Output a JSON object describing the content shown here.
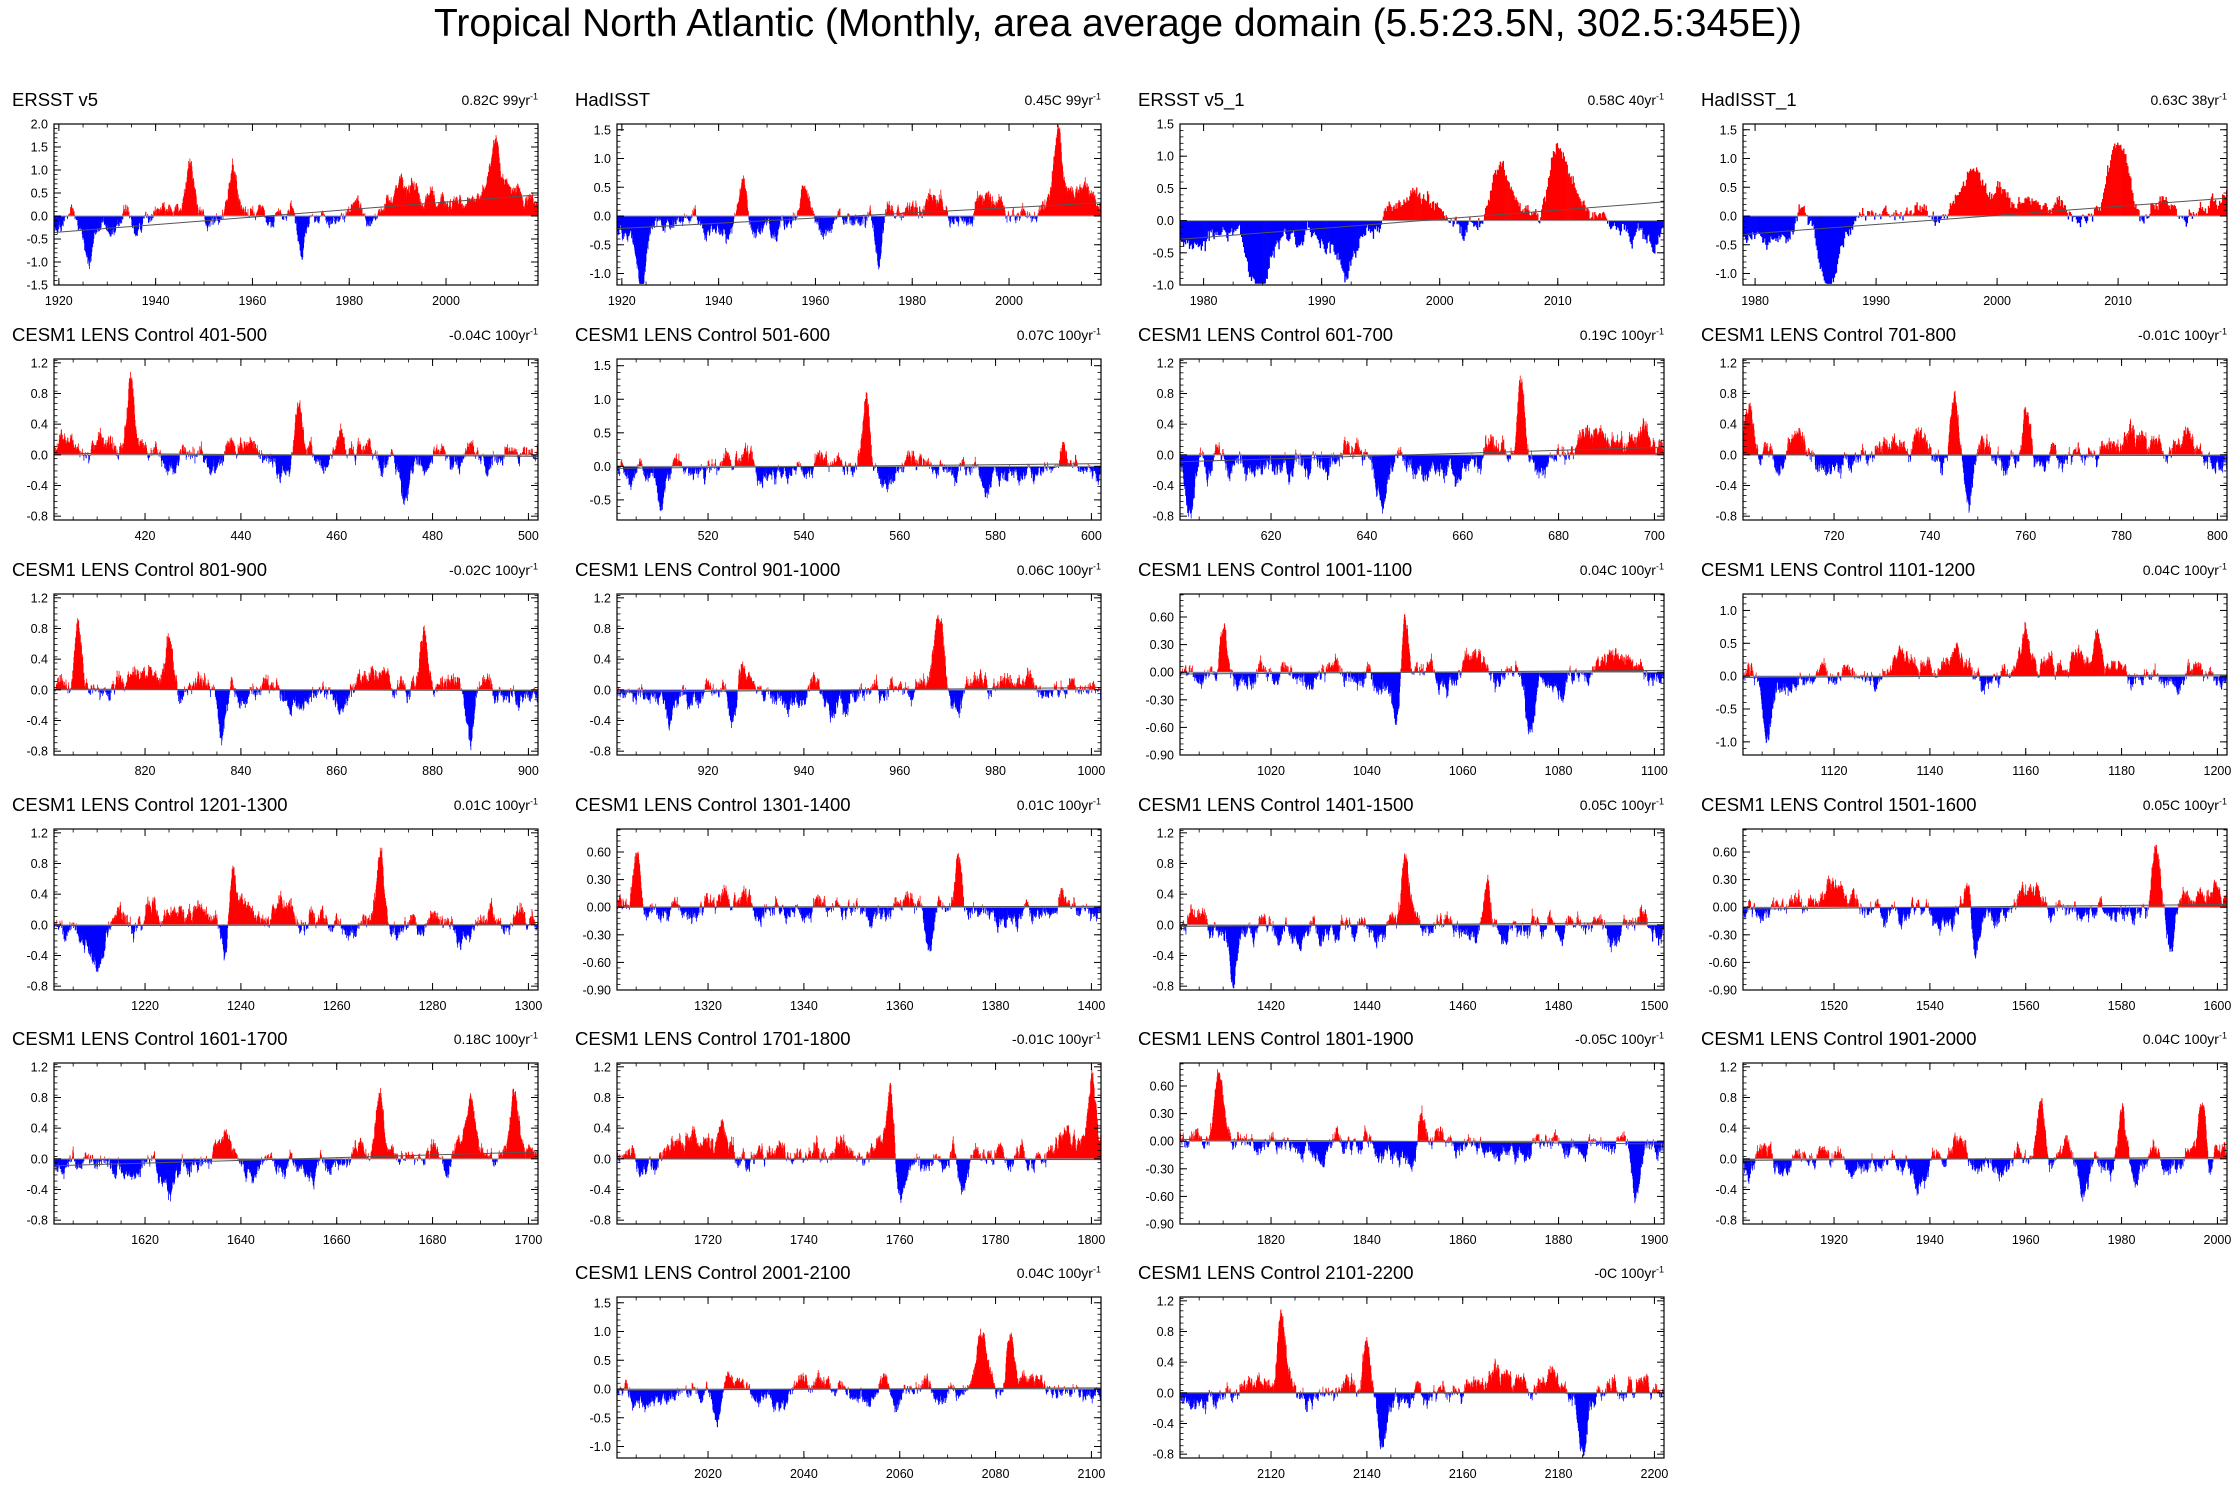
{
  "title": "Tropical North Atlantic (Monthly, area average domain (5.5:23.5N, 302.5:345E))",
  "colors": {
    "positive": "#ff0000",
    "negative": "#0000ff",
    "axis": "#000000",
    "zero_line": "#9a9a9a",
    "trend_line": "#555555"
  },
  "chart_data": [
    {
      "type": "bar",
      "title": "ERSST v5",
      "trend_value": "0.82C 99yr",
      "trend_unit_sup": "-1",
      "x_range": [
        1919,
        2019
      ],
      "x_ticks": [
        "1920",
        "1940",
        "1960",
        "1980",
        "2000"
      ],
      "ylim": [
        -1.5,
        2.0
      ],
      "y_ticks": [
        "2.0",
        "1.5",
        "1.0",
        "0.5",
        "0.0",
        "-0.5",
        "-1.0",
        "-1.5"
      ],
      "trend_line": [
        [
          1919,
          -0.36
        ],
        [
          2019,
          0.46
        ]
      ],
      "amplitude": 0.38,
      "seed": 1,
      "peaks": [
        [
          1926,
          -1.05
        ],
        [
          1947,
          1.38
        ],
        [
          1970,
          -1.25
        ],
        [
          2010,
          1.6
        ],
        [
          1956,
          0.9
        ],
        [
          1934,
          0.6
        ]
      ]
    },
    {
      "type": "bar",
      "title": "HadISST",
      "trend_value": "0.45C 99yr",
      "trend_unit_sup": "-1",
      "x_range": [
        1919,
        2019
      ],
      "x_ticks": [
        "1920",
        "1940",
        "1960",
        "1980",
        "2000"
      ],
      "ylim": [
        -1.2,
        1.6
      ],
      "y_ticks": [
        "1.5",
        "1.0",
        "0.5",
        "0.0",
        "-0.5",
        "-1.0"
      ],
      "trend_line": [
        [
          1919,
          -0.22
        ],
        [
          2019,
          0.23
        ]
      ],
      "amplitude": 0.32,
      "seed": 2,
      "peaks": [
        [
          1924,
          -1.0
        ],
        [
          1945,
          0.95
        ],
        [
          1973,
          -0.95
        ],
        [
          2010,
          1.45
        ],
        [
          1958,
          0.8
        ]
      ]
    },
    {
      "type": "bar",
      "title": "ERSST v5_1",
      "trend_value": "0.58C 40yr",
      "trend_unit_sup": "-1",
      "x_range": [
        1978,
        2019
      ],
      "x_ticks": [
        "1980",
        "1990",
        "2000",
        "2010"
      ],
      "ylim": [
        -1.0,
        1.5
      ],
      "y_ticks": [
        "1.5",
        "1.0",
        "0.5",
        "0.0",
        "-0.5",
        "-1.0"
      ],
      "trend_line": [
        [
          1978,
          -0.29
        ],
        [
          2019,
          0.29
        ]
      ],
      "amplitude": 0.35,
      "seed": 3,
      "peaks": [
        [
          1985,
          -0.85
        ],
        [
          1992,
          -0.7
        ],
        [
          2005,
          0.95
        ],
        [
          2010,
          1.4
        ],
        [
          2018,
          -0.75
        ]
      ]
    },
    {
      "type": "bar",
      "title": "HadISST_1",
      "trend_value": "0.63C 38yr",
      "trend_unit_sup": "-1",
      "x_range": [
        1979,
        2019
      ],
      "x_ticks": [
        "1980",
        "1990",
        "2000",
        "2010"
      ],
      "ylim": [
        -1.2,
        1.6
      ],
      "y_ticks": [
        "1.5",
        "1.0",
        "0.5",
        "0.0",
        "-0.5",
        "-1.0"
      ],
      "trend_line": [
        [
          1979,
          -0.32
        ],
        [
          2019,
          0.31
        ]
      ],
      "amplitude": 0.36,
      "seed": 4,
      "peaks": [
        [
          1986,
          -1.0
        ],
        [
          1998,
          0.75
        ],
        [
          2010,
          1.4
        ],
        [
          1984,
          0.7
        ]
      ]
    },
    {
      "type": "bar",
      "title": "CESM1 LENS Control 401-500",
      "trend_value": "-0.04C 100yr",
      "trend_unit_sup": "-1",
      "x_range": [
        401,
        502
      ],
      "x_ticks": [
        "420",
        "440",
        "460",
        "480",
        "500"
      ],
      "ylim": [
        -0.85,
        1.25
      ],
      "y_ticks": [
        "1.2",
        "0.8",
        "0.4",
        "0.0",
        "-0.4",
        "-0.8"
      ],
      "trend_line": [
        [
          401,
          0.02
        ],
        [
          502,
          -0.02
        ]
      ],
      "amplitude": 0.28,
      "seed": 5,
      "peaks": [
        [
          417,
          0.95
        ],
        [
          452,
          0.85
        ],
        [
          474,
          -0.55
        ]
      ]
    },
    {
      "type": "bar",
      "title": "CESM1 LENS Control 501-600",
      "trend_value": "0.07C 100yr",
      "trend_unit_sup": "-1",
      "x_range": [
        501,
        602
      ],
      "x_ticks": [
        "520",
        "540",
        "560",
        "580",
        "600"
      ],
      "ylim": [
        -0.8,
        1.6
      ],
      "y_ticks": [
        "1.5",
        "1.0",
        "0.5",
        "0.0",
        "-0.5"
      ],
      "trend_line": [
        [
          501,
          -0.03
        ],
        [
          602,
          0.04
        ]
      ],
      "amplitude": 0.3,
      "seed": 6,
      "peaks": [
        [
          553,
          1.25
        ],
        [
          510,
          -0.6
        ],
        [
          578,
          -0.55
        ]
      ]
    },
    {
      "type": "bar",
      "title": "CESM1 LENS Control 601-700",
      "trend_value": "0.19C 100yr",
      "trend_unit_sup": "-1",
      "x_range": [
        601,
        702
      ],
      "x_ticks": [
        "620",
        "640",
        "660",
        "680",
        "700"
      ],
      "ylim": [
        -0.85,
        1.25
      ],
      "y_ticks": [
        "1.2",
        "0.8",
        "0.4",
        "0.0",
        "-0.4",
        "-0.8"
      ],
      "trend_line": [
        [
          601,
          -0.09
        ],
        [
          702,
          0.1
        ]
      ],
      "amplitude": 0.3,
      "seed": 7,
      "peaks": [
        [
          672,
          1.1
        ],
        [
          603,
          -0.75
        ],
        [
          643,
          -0.55
        ]
      ]
    },
    {
      "type": "bar",
      "title": "CESM1 LENS Control 701-800",
      "trend_value": "-0.01C 100yr",
      "trend_unit_sup": "-1",
      "x_range": [
        701,
        802
      ],
      "x_ticks": [
        "720",
        "740",
        "760",
        "780",
        "800"
      ],
      "ylim": [
        -0.85,
        1.25
      ],
      "y_ticks": [
        "1.2",
        "0.8",
        "0.4",
        "0.0",
        "-0.4",
        "-0.8"
      ],
      "trend_line": [
        [
          701,
          0.0
        ],
        [
          802,
          -0.01
        ]
      ],
      "amplitude": 0.3,
      "seed": 8,
      "peaks": [
        [
          702,
          0.8
        ],
        [
          745,
          0.95
        ],
        [
          760,
          0.9
        ],
        [
          748,
          -0.75
        ]
      ]
    },
    {
      "type": "bar",
      "title": "CESM1 LENS Control 801-900",
      "trend_value": "-0.02C 100yr",
      "trend_unit_sup": "-1",
      "x_range": [
        801,
        902
      ],
      "x_ticks": [
        "820",
        "840",
        "860",
        "880",
        "900"
      ],
      "ylim": [
        -0.85,
        1.25
      ],
      "y_ticks": [
        "1.2",
        "0.8",
        "0.4",
        "0.0",
        "-0.4",
        "-0.8"
      ],
      "trend_line": [
        [
          801,
          0.01
        ],
        [
          902,
          -0.01
        ]
      ],
      "amplitude": 0.28,
      "seed": 9,
      "peaks": [
        [
          806,
          0.9
        ],
        [
          825,
          0.8
        ],
        [
          878,
          0.85
        ],
        [
          836,
          -0.75
        ],
        [
          888,
          -0.7
        ]
      ]
    },
    {
      "type": "bar",
      "title": "CESM1 LENS Control 901-1000",
      "trend_value": "0.06C 100yr",
      "trend_unit_sup": "-1",
      "x_range": [
        901,
        1002
      ],
      "x_ticks": [
        "920",
        "940",
        "960",
        "980",
        "1000"
      ],
      "ylim": [
        -0.85,
        1.25
      ],
      "y_ticks": [
        "1.2",
        "0.8",
        "0.4",
        "0.0",
        "-0.4",
        "-0.8"
      ],
      "trend_line": [
        [
          901,
          -0.03
        ],
        [
          1002,
          0.03
        ]
      ],
      "amplitude": 0.28,
      "seed": 10,
      "peaks": [
        [
          968,
          1.05
        ],
        [
          925,
          -0.7
        ],
        [
          912,
          -0.6
        ]
      ]
    },
    {
      "type": "bar",
      "title": "CESM1 LENS Control 1001-1100",
      "trend_value": "0.04C 100yr",
      "trend_unit_sup": "-1",
      "x_range": [
        1001,
        1102
      ],
      "x_ticks": [
        "1020",
        "1040",
        "1060",
        "1080",
        "1100"
      ],
      "ylim": [
        -0.9,
        0.85
      ],
      "y_ticks": [
        "0.60",
        "0.30",
        "0.00",
        "-0.30",
        "-0.60",
        "-0.90"
      ],
      "trend_line": [
        [
          1001,
          -0.02
        ],
        [
          1102,
          0.02
        ]
      ],
      "amplitude": 0.22,
      "seed": 11,
      "peaks": [
        [
          1048,
          0.8
        ],
        [
          1010,
          0.75
        ],
        [
          1046,
          -0.75
        ],
        [
          1074,
          -0.65
        ]
      ]
    },
    {
      "type": "bar",
      "title": "CESM1 LENS Control 1101-1200",
      "trend_value": "0.04C 100yr",
      "trend_unit_sup": "-1",
      "x_range": [
        1101,
        1202
      ],
      "x_ticks": [
        "1120",
        "1140",
        "1160",
        "1180",
        "1200"
      ],
      "ylim": [
        -1.2,
        1.25
      ],
      "y_ticks": [
        "1.0",
        "0.5",
        "0.0",
        "-0.5",
        "-1.0"
      ],
      "trend_line": [
        [
          1101,
          -0.02
        ],
        [
          1202,
          0.02
        ]
      ],
      "amplitude": 0.3,
      "seed": 12,
      "peaks": [
        [
          1106,
          -1.1
        ],
        [
          1160,
          0.9
        ],
        [
          1175,
          0.85
        ]
      ]
    },
    {
      "type": "bar",
      "title": "CESM1 LENS Control 1201-1300",
      "trend_value": "0.01C 100yr",
      "trend_unit_sup": "-1",
      "x_range": [
        1201,
        1302
      ],
      "x_ticks": [
        "1220",
        "1240",
        "1260",
        "1280",
        "1300"
      ],
      "ylim": [
        -0.85,
        1.25
      ],
      "y_ticks": [
        "1.2",
        "0.8",
        "0.4",
        "0.0",
        "-0.4",
        "-0.8"
      ],
      "trend_line": [
        [
          1201,
          -0.01
        ],
        [
          1302,
          0.0
        ]
      ],
      "amplitude": 0.28,
      "seed": 13,
      "peaks": [
        [
          1238,
          1.05
        ],
        [
          1269,
          0.95
        ],
        [
          1237,
          -0.75
        ],
        [
          1210,
          -0.6
        ]
      ]
    },
    {
      "type": "bar",
      "title": "CESM1 LENS Control 1301-1400",
      "trend_value": "0.01C 100yr",
      "trend_unit_sup": "-1",
      "x_range": [
        1301,
        1402
      ],
      "x_ticks": [
        "1320",
        "1340",
        "1360",
        "1380",
        "1400"
      ],
      "ylim": [
        -0.9,
        0.85
      ],
      "y_ticks": [
        "0.60",
        "0.30",
        "0.00",
        "-0.30",
        "-0.60",
        "-0.90"
      ],
      "trend_line": [
        [
          1301,
          0.0
        ],
        [
          1402,
          0.01
        ]
      ],
      "amplitude": 0.22,
      "seed": 14,
      "peaks": [
        [
          1372,
          0.7
        ],
        [
          1305,
          0.6
        ],
        [
          1366,
          -0.65
        ]
      ]
    },
    {
      "type": "bar",
      "title": "CESM1 LENS Control 1401-1500",
      "trend_value": "0.05C 100yr",
      "trend_unit_sup": "-1",
      "x_range": [
        1401,
        1502
      ],
      "x_ticks": [
        "1420",
        "1440",
        "1460",
        "1480",
        "1500"
      ],
      "ylim": [
        -0.85,
        1.25
      ],
      "y_ticks": [
        "1.2",
        "0.8",
        "0.4",
        "0.0",
        "-0.4",
        "-0.8"
      ],
      "trend_line": [
        [
          1401,
          -0.02
        ],
        [
          1502,
          0.03
        ]
      ],
      "amplitude": 0.28,
      "seed": 15,
      "peaks": [
        [
          1448,
          1.0
        ],
        [
          1465,
          0.85
        ],
        [
          1412,
          -0.7
        ]
      ]
    },
    {
      "type": "bar",
      "title": "CESM1 LENS Control 1501-1600",
      "trend_value": "0.05C 100yr",
      "trend_unit_sup": "-1",
      "x_range": [
        1501,
        1602
      ],
      "x_ticks": [
        "1520",
        "1540",
        "1560",
        "1580",
        "1600"
      ],
      "ylim": [
        -0.9,
        0.85
      ],
      "y_ticks": [
        "0.60",
        "0.30",
        "0.00",
        "-0.30",
        "-0.60",
        "-0.90"
      ],
      "trend_line": [
        [
          1501,
          -0.02
        ],
        [
          1602,
          0.03
        ]
      ],
      "amplitude": 0.22,
      "seed": 16,
      "peaks": [
        [
          1587,
          0.8
        ],
        [
          1548,
          0.65
        ],
        [
          1590,
          -0.6
        ],
        [
          1549,
          -0.55
        ]
      ]
    },
    {
      "type": "bar",
      "title": "CESM1 LENS Control 1601-1700",
      "trend_value": "0.18C 100yr",
      "trend_unit_sup": "-1",
      "x_range": [
        1601,
        1702
      ],
      "x_ticks": [
        "1620",
        "1640",
        "1660",
        "1680",
        "1700"
      ],
      "ylim": [
        -0.85,
        1.25
      ],
      "y_ticks": [
        "1.2",
        "0.8",
        "0.4",
        "0.0",
        "-0.4",
        "-0.8"
      ],
      "trend_line": [
        [
          1601,
          -0.09
        ],
        [
          1702,
          0.09
        ]
      ],
      "amplitude": 0.24,
      "seed": 17,
      "peaks": [
        [
          1669,
          0.95
        ],
        [
          1697,
          0.8
        ],
        [
          1688,
          0.7
        ],
        [
          1683,
          -0.55
        ],
        [
          1625,
          -0.5
        ]
      ]
    },
    {
      "type": "bar",
      "title": "CESM1 LENS Control 1701-1800",
      "trend_value": "-0.01C 100yr",
      "trend_unit_sup": "-1",
      "x_range": [
        1701,
        1802
      ],
      "x_ticks": [
        "1720",
        "1740",
        "1760",
        "1780",
        "1800"
      ],
      "ylim": [
        -0.85,
        1.25
      ],
      "y_ticks": [
        "1.2",
        "0.8",
        "0.4",
        "0.0",
        "-0.4",
        "-0.8"
      ],
      "trend_line": [
        [
          1701,
          0.0
        ],
        [
          1802,
          -0.01
        ]
      ],
      "amplitude": 0.28,
      "seed": 18,
      "peaks": [
        [
          1758,
          1.0
        ],
        [
          1800,
          0.9
        ],
        [
          1773,
          -0.7
        ],
        [
          1760,
          -0.65
        ]
      ]
    },
    {
      "type": "bar",
      "title": "CESM1 LENS Control 1801-1900",
      "trend_value": "-0.05C 100yr",
      "trend_unit_sup": "-1",
      "x_range": [
        1801,
        1902
      ],
      "x_ticks": [
        "1820",
        "1840",
        "1860",
        "1880",
        "1900"
      ],
      "ylim": [
        -0.9,
        0.85
      ],
      "y_ticks": [
        "0.60",
        "0.30",
        "0.00",
        "-0.30",
        "-0.60",
        "-0.90"
      ],
      "trend_line": [
        [
          1801,
          0.02
        ],
        [
          1902,
          -0.03
        ]
      ],
      "amplitude": 0.22,
      "seed": 19,
      "peaks": [
        [
          1809,
          0.75
        ],
        [
          1851,
          0.75
        ],
        [
          1850,
          -0.55
        ],
        [
          1896,
          -0.45
        ]
      ]
    },
    {
      "type": "bar",
      "title": "CESM1 LENS Control 1901-2000",
      "trend_value": "0.04C 100yr",
      "trend_unit_sup": "-1",
      "x_range": [
        1901,
        2002
      ],
      "x_ticks": [
        "1920",
        "1940",
        "1960",
        "1980",
        "2000"
      ],
      "ylim": [
        -0.85,
        1.25
      ],
      "y_ticks": [
        "1.2",
        "0.8",
        "0.4",
        "0.0",
        "-0.4",
        "-0.8"
      ],
      "trend_line": [
        [
          1901,
          -0.02
        ],
        [
          2002,
          0.02
        ]
      ],
      "amplitude": 0.26,
      "seed": 20,
      "peaks": [
        [
          1997,
          1.0
        ],
        [
          1963,
          0.85
        ],
        [
          1980,
          0.85
        ],
        [
          1972,
          -0.55
        ],
        [
          1998,
          -0.75
        ]
      ]
    },
    {
      "type": "bar",
      "title": "CESM1 LENS Control 2001-2100",
      "trend_value": "0.04C 100yr",
      "trend_unit_sup": "-1",
      "x_range": [
        2001,
        2102
      ],
      "x_ticks": [
        "2020",
        "2040",
        "2060",
        "2080",
        "2100"
      ],
      "ylim": [
        -1.2,
        1.6
      ],
      "y_ticks": [
        "1.5",
        "1.0",
        "0.5",
        "0.0",
        "-0.5",
        "-1.0"
      ],
      "trend_line": [
        [
          2001,
          -0.02
        ],
        [
          2102,
          0.02
        ]
      ],
      "amplitude": 0.3,
      "seed": 21,
      "peaks": [
        [
          2083,
          1.2
        ],
        [
          2077,
          0.9
        ],
        [
          2022,
          -0.75
        ],
        [
          2059,
          -0.6
        ]
      ]
    },
    {
      "type": "bar",
      "title": "CESM1 LENS Control 2101-2200",
      "trend_value": "-0C 100yr",
      "trend_unit_sup": "-1",
      "x_range": [
        2101,
        2202
      ],
      "x_ticks": [
        "2120",
        "2140",
        "2160",
        "2180",
        "2200"
      ],
      "ylim": [
        -0.85,
        1.25
      ],
      "y_ticks": [
        "1.2",
        "0.8",
        "0.4",
        "0.0",
        "-0.4",
        "-0.8"
      ],
      "trend_line": [
        [
          2101,
          0.0
        ],
        [
          2202,
          0.0
        ]
      ],
      "amplitude": 0.28,
      "seed": 22,
      "peaks": [
        [
          2140,
          0.95
        ],
        [
          2122,
          0.9
        ],
        [
          2185,
          -0.8
        ],
        [
          2143,
          -0.7
        ]
      ]
    }
  ]
}
